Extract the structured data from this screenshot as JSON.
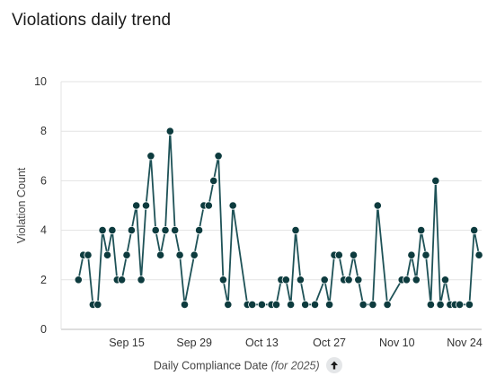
{
  "title": "Violations daily trend",
  "colors": {
    "line": "#1e5257",
    "marker": "#0d3b3e",
    "grid": "#e3e3e3",
    "axis": "#bdbdbd"
  },
  "sort_icon": "arrow-up-icon",
  "chart_data": {
    "type": "line",
    "title": "Violations daily trend",
    "xlabel": "Daily Compliance Date",
    "xlabel_suffix": "(for 2025)",
    "ylabel": "Violation Count",
    "ylim": [
      0,
      10
    ],
    "yticks": [
      "0",
      "2",
      "4",
      "6",
      "8",
      "10"
    ],
    "xlim": [
      "2025-09-04",
      "2025-11-24"
    ],
    "xticks": [
      {
        "label": "Sep 15",
        "date": "2025-09-15"
      },
      {
        "label": "Sep 29",
        "date": "2025-09-29"
      },
      {
        "label": "Oct 13",
        "date": "2025-10-13"
      },
      {
        "label": "Oct 27",
        "date": "2025-10-27"
      },
      {
        "label": "Nov 10",
        "date": "2025-11-10"
      },
      {
        "label": "Nov 24",
        "date": "2025-11-24"
      }
    ],
    "grid": "horizontal",
    "series": [
      {
        "points": [
          {
            "x": "2025-09-05",
            "y": 2
          },
          {
            "x": "2025-09-06",
            "y": 3
          },
          {
            "x": "2025-09-07",
            "y": 3
          },
          {
            "x": "2025-09-08",
            "y": 1
          },
          {
            "x": "2025-09-09",
            "y": 1
          },
          {
            "x": "2025-09-10",
            "y": 4
          },
          {
            "x": "2025-09-11",
            "y": 3
          },
          {
            "x": "2025-09-12",
            "y": 4
          },
          {
            "x": "2025-09-13",
            "y": 2
          },
          {
            "x": "2025-09-14",
            "y": 2
          },
          {
            "x": "2025-09-15",
            "y": 3
          },
          {
            "x": "2025-09-16",
            "y": 4
          },
          {
            "x": "2025-09-17",
            "y": 5
          },
          {
            "x": "2025-09-18",
            "y": 2
          },
          {
            "x": "2025-09-19",
            "y": 5
          },
          {
            "x": "2025-09-20",
            "y": 7
          },
          {
            "x": "2025-09-21",
            "y": 4
          },
          {
            "x": "2025-09-22",
            "y": 3
          },
          {
            "x": "2025-09-23",
            "y": 4
          },
          {
            "x": "2025-09-24",
            "y": 8
          },
          {
            "x": "2025-09-25",
            "y": 4
          },
          {
            "x": "2025-09-26",
            "y": 3
          },
          {
            "x": "2025-09-27",
            "y": 1
          },
          {
            "x": "2025-09-29",
            "y": 3
          },
          {
            "x": "2025-09-30",
            "y": 4
          },
          {
            "x": "2025-10-01",
            "y": 5
          },
          {
            "x": "2025-10-02",
            "y": 5
          },
          {
            "x": "2025-10-03",
            "y": 6
          },
          {
            "x": "2025-10-04",
            "y": 7
          },
          {
            "x": "2025-10-05",
            "y": 2
          },
          {
            "x": "2025-10-06",
            "y": 1
          },
          {
            "x": "2025-10-07",
            "y": 5
          },
          {
            "x": "2025-10-10",
            "y": 1
          },
          {
            "x": "2025-10-11",
            "y": 1
          },
          {
            "x": "2025-10-13",
            "y": 1
          },
          {
            "x": "2025-10-15",
            "y": 1
          },
          {
            "x": "2025-10-16",
            "y": 1
          },
          {
            "x": "2025-10-17",
            "y": 2
          },
          {
            "x": "2025-10-18",
            "y": 2
          },
          {
            "x": "2025-10-19",
            "y": 1
          },
          {
            "x": "2025-10-20",
            "y": 4
          },
          {
            "x": "2025-10-21",
            "y": 2
          },
          {
            "x": "2025-10-22",
            "y": 1
          },
          {
            "x": "2025-10-24",
            "y": 1
          },
          {
            "x": "2025-10-26",
            "y": 2
          },
          {
            "x": "2025-10-27",
            "y": 1
          },
          {
            "x": "2025-10-28",
            "y": 3
          },
          {
            "x": "2025-10-29",
            "y": 3
          },
          {
            "x": "2025-10-30",
            "y": 2
          },
          {
            "x": "2025-10-31",
            "y": 2
          },
          {
            "x": "2025-11-01",
            "y": 3
          },
          {
            "x": "2025-11-02",
            "y": 2
          },
          {
            "x": "2025-11-03",
            "y": 1
          },
          {
            "x": "2025-11-05",
            "y": 1
          },
          {
            "x": "2025-11-06",
            "y": 5
          },
          {
            "x": "2025-11-08",
            "y": 1
          },
          {
            "x": "2025-11-11",
            "y": 2
          },
          {
            "x": "2025-11-12",
            "y": 2
          },
          {
            "x": "2025-11-13",
            "y": 3
          },
          {
            "x": "2025-11-14",
            "y": 2
          },
          {
            "x": "2025-11-15",
            "y": 4
          },
          {
            "x": "2025-11-16",
            "y": 3
          },
          {
            "x": "2025-11-17",
            "y": 1
          },
          {
            "x": "2025-11-18",
            "y": 6
          },
          {
            "x": "2025-11-19",
            "y": 1
          },
          {
            "x": "2025-11-20",
            "y": 2
          },
          {
            "x": "2025-11-21",
            "y": 1
          },
          {
            "x": "2025-11-22",
            "y": 1
          },
          {
            "x": "2025-11-23",
            "y": 1
          },
          {
            "x": "2025-11-25",
            "y": 1
          },
          {
            "x": "2025-11-26",
            "y": 4
          },
          {
            "x": "2025-11-27",
            "y": 3
          }
        ]
      }
    ]
  }
}
